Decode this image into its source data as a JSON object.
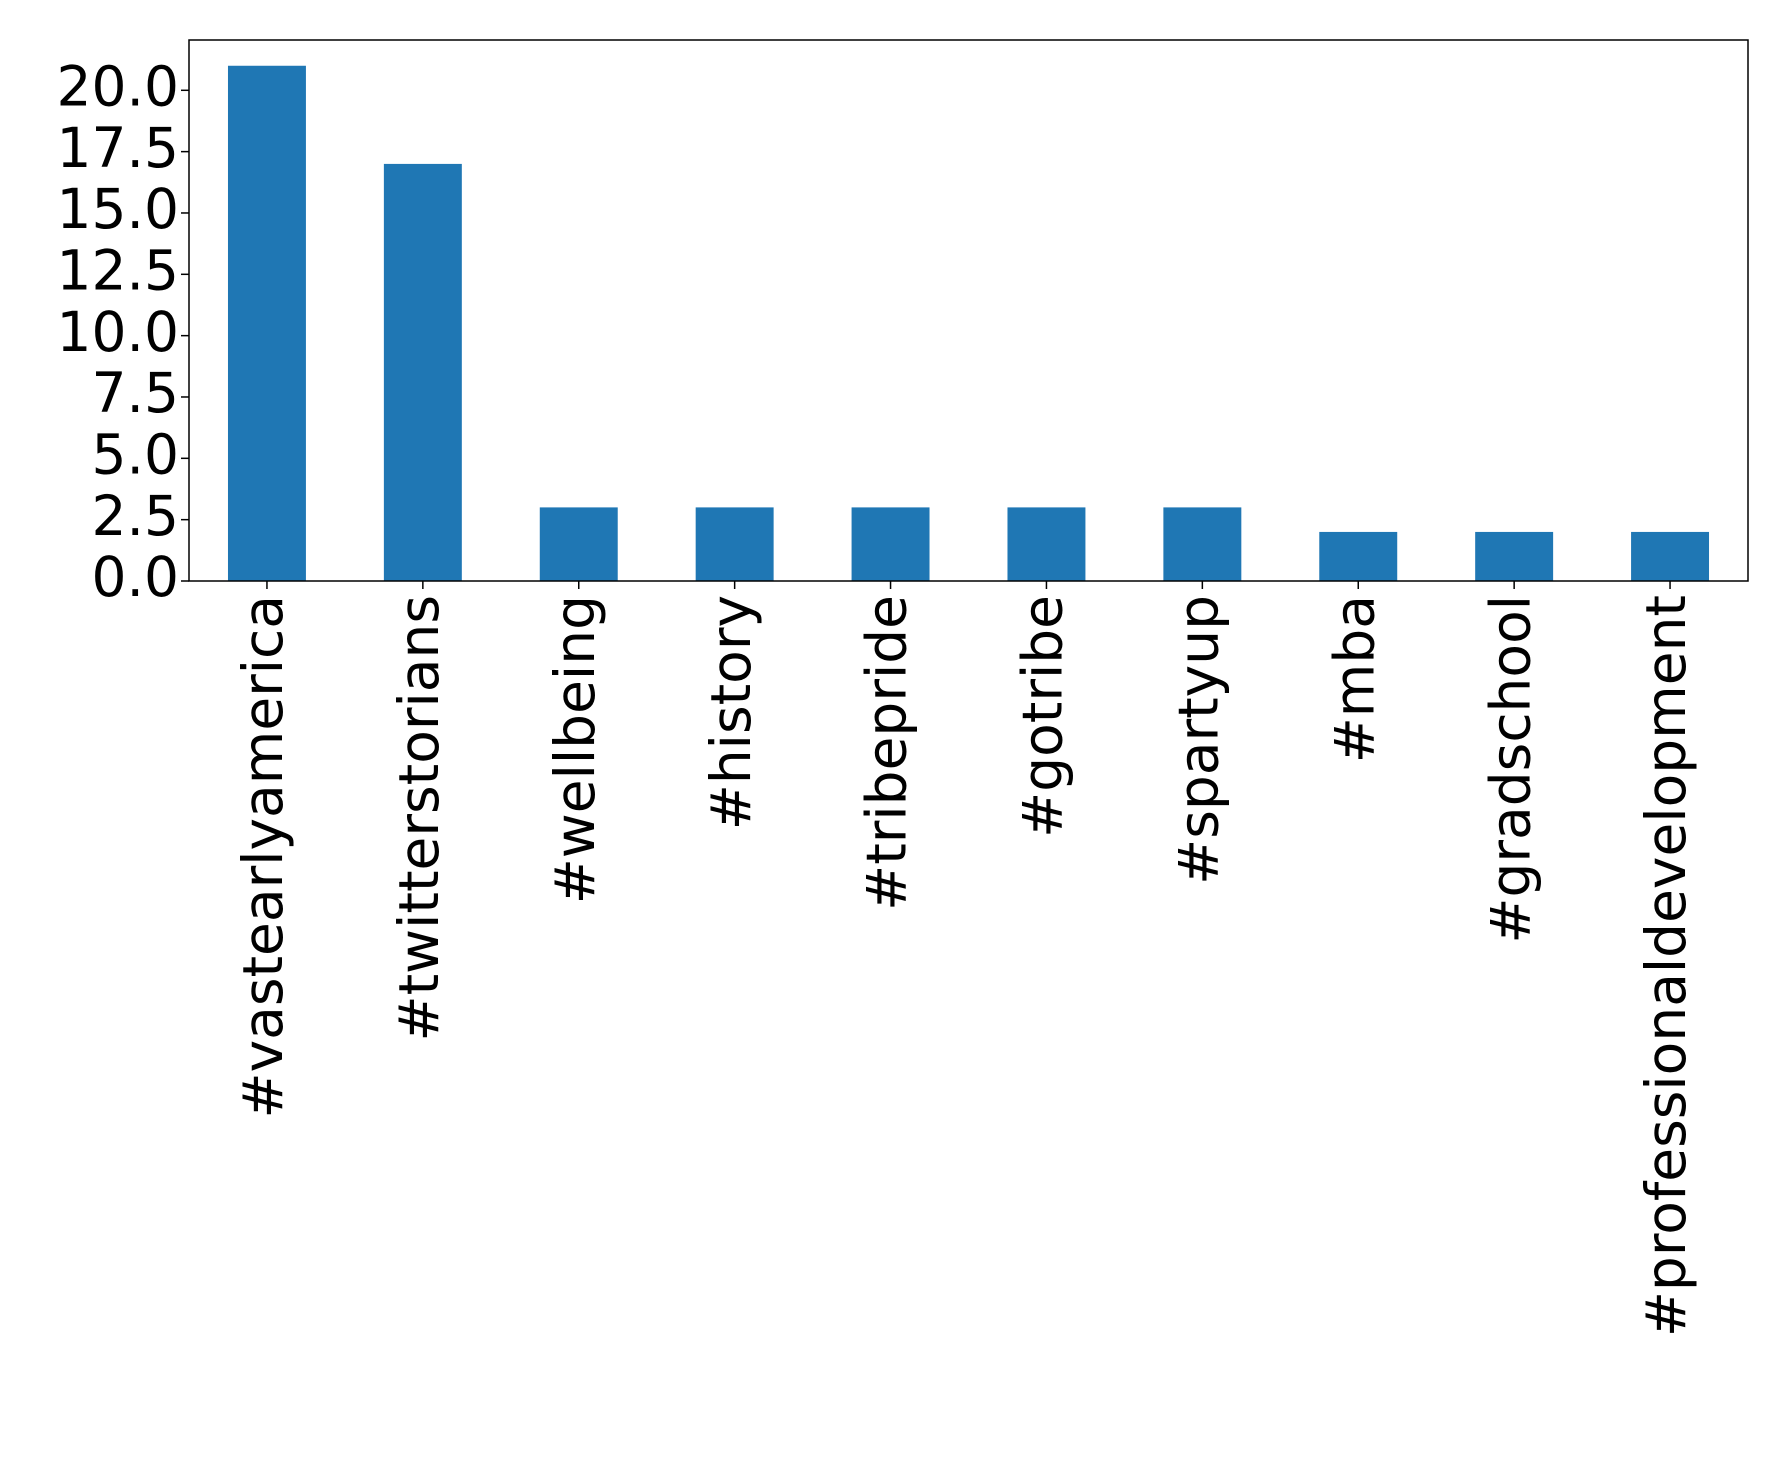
{
  "chart_data": {
    "type": "bar",
    "categories": [
      "#vastearlyamerica",
      "#twitterstorians",
      "#wellbeing",
      "#history",
      "#tribepride",
      "#gotribe",
      "#spartyup",
      "#mba",
      "#gradschool",
      "#professionaldevelopment"
    ],
    "values": [
      21,
      17,
      3,
      3,
      3,
      3,
      3,
      2,
      2,
      2
    ],
    "color": "#1f77b4",
    "ylim": [
      0,
      22.05
    ],
    "yticks": [
      {
        "value": 0,
        "label": "0.0"
      },
      {
        "value": 2.5,
        "label": "2.5"
      },
      {
        "value": 5,
        "label": "5.0"
      },
      {
        "value": 7.5,
        "label": "7.5"
      },
      {
        "value": 10,
        "label": "10.0"
      },
      {
        "value": 12.5,
        "label": "12.5"
      },
      {
        "value": 15,
        "label": "15.0"
      },
      {
        "value": 17.5,
        "label": "17.5"
      },
      {
        "value": 20,
        "label": "20.0"
      }
    ],
    "grid": false
  }
}
